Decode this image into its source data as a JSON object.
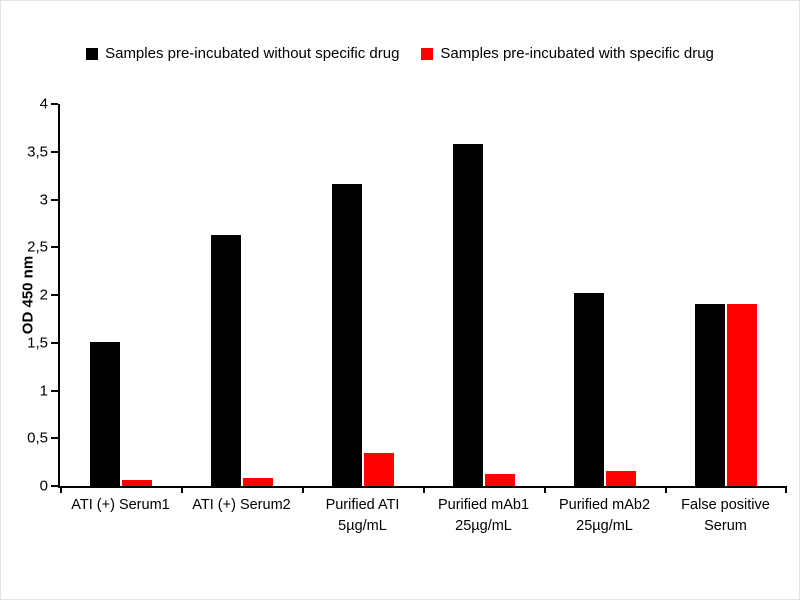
{
  "legend": {
    "items": [
      {
        "label": "Samples pre-incubated without specific drug",
        "color": "#000000"
      },
      {
        "label": "Samples pre-incubated with specific drug",
        "color": "#ff0000"
      }
    ]
  },
  "chart_data": {
    "type": "bar",
    "categories": [
      "ATI (+) Serum1",
      "ATI (+) Serum2",
      "Purified ATI\n5µg/mL",
      "Purified mAb1\n25µg/mL",
      "Purified mAb2\n25µg/mL",
      "False positive\nSerum"
    ],
    "series": [
      {
        "name": "Samples pre-incubated without specific drug",
        "color": "#000000",
        "values": [
          1.51,
          2.63,
          3.16,
          3.58,
          2.02,
          1.91
        ]
      },
      {
        "name": "Samples pre-incubated with specific drug",
        "color": "#ff0000",
        "values": [
          0.06,
          0.08,
          0.35,
          0.13,
          0.16,
          1.91
        ]
      }
    ],
    "title": "",
    "xlabel": "",
    "ylabel": "OD 450 nm",
    "ylim": [
      0,
      4
    ],
    "ytick_step": 0.5,
    "ytick_labels": [
      "0",
      "0,5",
      "1",
      "1,5",
      "2",
      "2,5",
      "3",
      "3,5",
      "4"
    ],
    "grid": false,
    "legend_position": "top"
  }
}
